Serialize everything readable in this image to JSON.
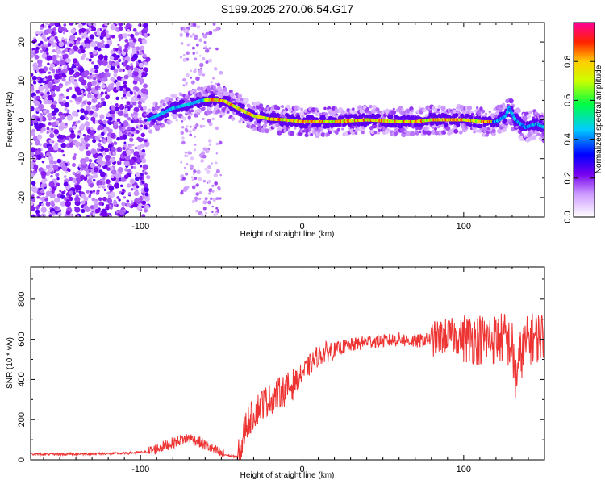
{
  "title": "S199.2025.270.06.54.G17",
  "chart_data": [
    {
      "id": "spectrogram",
      "type": "heatmap",
      "title": "S199.2025.270.06.54.G17",
      "xlabel": "Height of straight line (km)",
      "ylabel": "Frequency (Hz)",
      "xlim": [
        -168,
        150
      ],
      "ylim": [
        -25,
        25
      ],
      "xticks": [
        -100,
        0,
        100
      ],
      "yticks": [
        -20,
        -10,
        0,
        10,
        20
      ],
      "colorbar": {
        "label": "Normalized spectral amplitude",
        "range": [
          0,
          1
        ],
        "ticks": [
          0.0,
          0.2,
          0.4,
          0.6,
          0.8
        ]
      },
      "ridge": {
        "x": [
          -95,
          -80,
          -70,
          -62,
          -55,
          -48,
          -40,
          -30,
          -20,
          -10,
          0,
          20,
          40,
          60,
          70,
          80,
          100,
          112,
          120,
          126,
          128,
          132,
          138,
          145,
          150
        ],
        "freq": [
          0,
          3,
          4,
          5,
          5.2,
          4.8,
          3,
          1,
          0.2,
          0,
          -0.5,
          -0.5,
          0,
          -0.5,
          -0.5,
          0,
          0,
          -0.5,
          -0.5,
          1,
          3,
          0,
          -2,
          -1,
          -2
        ]
      }
    },
    {
      "id": "snr",
      "type": "line",
      "xlabel": "Height of straight line (km)",
      "ylabel": "SNR (10 * v/v)",
      "xlim": [
        -168,
        150
      ],
      "ylim": [
        0,
        960
      ],
      "xticks": [
        -100,
        0,
        100
      ],
      "yticks": [
        0,
        200,
        400,
        600,
        800
      ],
      "series": [
        {
          "name": "SNR",
          "color": "#ee3333",
          "x": [
            -168,
            -150,
            -130,
            -110,
            -95,
            -85,
            -75,
            -70,
            -65,
            -58,
            -50,
            -45,
            -40,
            -38,
            -35,
            -30,
            -25,
            -20,
            -15,
            -10,
            -5,
            0,
            10,
            20,
            30,
            40,
            50,
            60,
            70,
            80,
            90,
            100,
            110,
            120,
            125,
            130,
            132,
            135,
            140,
            145,
            150
          ],
          "values": [
            28,
            28,
            30,
            32,
            40,
            70,
            100,
            110,
            95,
            65,
            30,
            20,
            15,
            40,
            170,
            230,
            280,
            300,
            330,
            350,
            380,
            430,
            520,
            550,
            570,
            590,
            590,
            600,
            590,
            600,
            620,
            610,
            600,
            600,
            610,
            560,
            400,
            520,
            600,
            610,
            620
          ]
        }
      ]
    }
  ]
}
